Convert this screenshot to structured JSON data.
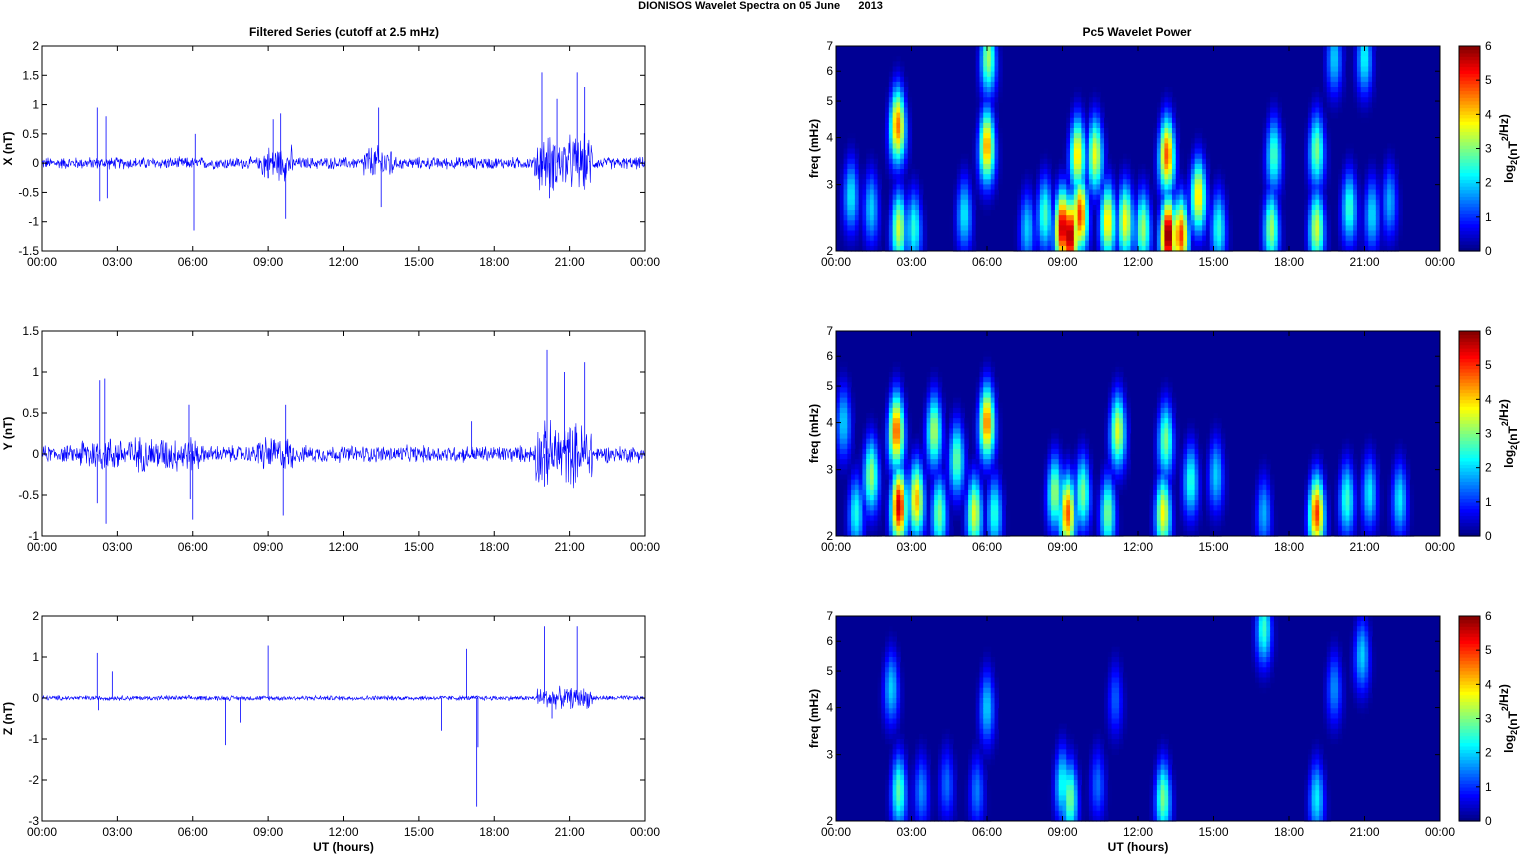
{
  "title": "DIONISOS Wavelet Spectra on 05 June      2013",
  "left_title": "Filtered Series (cutoff at 2.5 mHz)",
  "right_title": "Pc5 Wavelet Power",
  "time_ticks": [
    "00:00",
    "03:00",
    "06:00",
    "09:00",
    "12:00",
    "15:00",
    "18:00",
    "21:00",
    "00:00"
  ],
  "x_axis_label": "UT (hours)",
  "colors": {
    "series": "#0000ff",
    "background": "#ffffff",
    "axis": "#000000"
  },
  "chart_data": [
    {
      "type": "line",
      "panel": "X",
      "ylabel": "X (nT)",
      "xlabel": "",
      "ylim": [
        -1.5,
        2
      ],
      "yticks": [
        "-1.5",
        "-1",
        "-0.5",
        "0",
        "0.5",
        "1",
        "1.5",
        "2"
      ],
      "xlim_hours": [
        0,
        24
      ],
      "baseline_noise": 0.12,
      "spikes": [
        {
          "t": 2.2,
          "v": 0.95
        },
        {
          "t": 2.3,
          "v": -0.65
        },
        {
          "t": 2.55,
          "v": 0.8
        },
        {
          "t": 2.6,
          "v": -0.6
        },
        {
          "t": 6.05,
          "v": -1.15
        },
        {
          "t": 6.1,
          "v": 0.5
        },
        {
          "t": 9.5,
          "v": 0.85
        },
        {
          "t": 9.7,
          "v": -0.95
        },
        {
          "t": 9.2,
          "v": 0.75
        },
        {
          "t": 13.4,
          "v": 0.95
        },
        {
          "t": 13.5,
          "v": -0.75
        },
        {
          "t": 19.9,
          "v": 1.55
        },
        {
          "t": 21.3,
          "v": 1.55
        },
        {
          "t": 21.6,
          "v": 1.3
        },
        {
          "t": 20.5,
          "v": 1.1
        },
        {
          "t": 20.2,
          "v": -0.6
        }
      ],
      "active_intervals": [
        [
          8.7,
          10.0,
          0.35
        ],
        [
          12.8,
          14.0,
          0.35
        ],
        [
          19.6,
          21.9,
          0.55
        ]
      ]
    },
    {
      "type": "line",
      "panel": "Y",
      "ylabel": "Y (nT)",
      "xlabel": "",
      "ylim": [
        -1,
        1.5
      ],
      "yticks": [
        "-1",
        "-0.5",
        "0",
        "0.5",
        "1",
        "1.5"
      ],
      "xlim_hours": [
        0,
        24
      ],
      "baseline_noise": 0.12,
      "spikes": [
        {
          "t": 2.3,
          "v": 0.9
        },
        {
          "t": 2.5,
          "v": 0.92
        },
        {
          "t": 2.55,
          "v": -0.85
        },
        {
          "t": 2.2,
          "v": -0.6
        },
        {
          "t": 6.0,
          "v": -0.8
        },
        {
          "t": 5.85,
          "v": 0.6
        },
        {
          "t": 5.9,
          "v": -0.55
        },
        {
          "t": 9.6,
          "v": -0.75
        },
        {
          "t": 9.7,
          "v": 0.6
        },
        {
          "t": 17.1,
          "v": 0.4
        },
        {
          "t": 20.1,
          "v": 1.27
        },
        {
          "t": 21.6,
          "v": 1.12
        },
        {
          "t": 20.8,
          "v": 1.0
        },
        {
          "t": 20.0,
          "v": -0.4
        }
      ],
      "active_intervals": [
        [
          1.5,
          6.3,
          0.25
        ],
        [
          8.5,
          10.0,
          0.25
        ],
        [
          19.6,
          21.9,
          0.45
        ]
      ]
    },
    {
      "type": "line",
      "panel": "Z",
      "ylabel": "Z (nT)",
      "xlabel": "UT (hours)",
      "ylim": [
        -3,
        2
      ],
      "yticks": [
        "-3",
        "-2",
        "-1",
        "0",
        "1",
        "2"
      ],
      "xlim_hours": [
        0,
        24
      ],
      "baseline_noise": 0.07,
      "spikes": [
        {
          "t": 2.2,
          "v": 1.1
        },
        {
          "t": 2.25,
          "v": -0.3
        },
        {
          "t": 2.8,
          "v": 0.65
        },
        {
          "t": 7.3,
          "v": -1.15
        },
        {
          "t": 7.9,
          "v": -0.6
        },
        {
          "t": 9.0,
          "v": 1.28
        },
        {
          "t": 15.9,
          "v": -0.8
        },
        {
          "t": 16.9,
          "v": 1.2
        },
        {
          "t": 17.3,
          "v": -2.65
        },
        {
          "t": 17.35,
          "v": -1.2
        },
        {
          "t": 20.0,
          "v": 1.75
        },
        {
          "t": 21.3,
          "v": 1.75
        },
        {
          "t": 20.3,
          "v": -0.5
        }
      ],
      "active_intervals": [
        [
          19.7,
          21.9,
          0.3
        ]
      ]
    },
    {
      "type": "heatmap",
      "panel": "X",
      "title": "Pc5 Wavelet Power",
      "ylabel": "freq (mHz)",
      "xlabel": "",
      "y_scale": "log",
      "ylim": [
        2,
        7
      ],
      "yticks": [
        "2",
        "3",
        "4",
        "5",
        "6",
        "7"
      ],
      "xlim_hours": [
        0,
        24
      ],
      "clim": [
        0,
        6
      ],
      "colorbar_label": "log2(nT²/Hz)",
      "colorbar_ticks": [
        "0",
        "1",
        "2",
        "3",
        "4",
        "5",
        "6"
      ],
      "blobs": [
        {
          "t": 0.6,
          "f0": 2.8,
          "p": 2.2
        },
        {
          "t": 1.4,
          "f0": 2.6,
          "p": 2.0
        },
        {
          "t": 2.5,
          "f0": 2.3,
          "p": 3.5
        },
        {
          "t": 2.45,
          "f0": 4.3,
          "p": 4.6
        },
        {
          "t": 3.1,
          "f0": 2.3,
          "p": 2.5
        },
        {
          "t": 5.1,
          "f0": 2.5,
          "p": 2.2
        },
        {
          "t": 6.0,
          "f0": 3.8,
          "p": 4.4
        },
        {
          "t": 6.05,
          "f0": 6.5,
          "p": 3.2
        },
        {
          "t": 7.6,
          "f0": 2.3,
          "p": 2.0
        },
        {
          "t": 8.3,
          "f0": 2.5,
          "p": 2.7
        },
        {
          "t": 9.0,
          "f0": 2.3,
          "p": 5.8
        },
        {
          "t": 9.3,
          "f0": 2.2,
          "p": 6.0
        },
        {
          "t": 9.7,
          "f0": 2.5,
          "p": 5.0
        },
        {
          "t": 9.6,
          "f0": 3.6,
          "p": 4.0
        },
        {
          "t": 10.3,
          "f0": 3.6,
          "p": 3.7
        },
        {
          "t": 10.8,
          "f0": 2.4,
          "p": 4.0
        },
        {
          "t": 11.5,
          "f0": 2.4,
          "p": 3.8
        },
        {
          "t": 12.2,
          "f0": 2.3,
          "p": 3.2
        },
        {
          "t": 13.2,
          "f0": 2.2,
          "p": 6.2
        },
        {
          "t": 13.15,
          "f0": 3.6,
          "p": 4.8
        },
        {
          "t": 13.7,
          "f0": 2.2,
          "p": 5.0
        },
        {
          "t": 14.4,
          "f0": 2.8,
          "p": 4.0
        },
        {
          "t": 15.2,
          "f0": 2.3,
          "p": 2.5
        },
        {
          "t": 17.3,
          "f0": 2.3,
          "p": 3.2
        },
        {
          "t": 17.4,
          "f0": 3.6,
          "p": 2.7
        },
        {
          "t": 19.1,
          "f0": 2.3,
          "p": 3.5
        },
        {
          "t": 19.1,
          "f0": 3.7,
          "p": 3.0
        },
        {
          "t": 20.4,
          "f0": 2.6,
          "p": 2.6
        },
        {
          "t": 21.3,
          "f0": 2.5,
          "p": 2.1
        },
        {
          "t": 22.0,
          "f0": 2.7,
          "p": 1.8
        },
        {
          "t": 19.8,
          "f0": 6.5,
          "p": 2.0
        },
        {
          "t": 21.0,
          "f0": 6.5,
          "p": 2.3
        }
      ]
    },
    {
      "type": "heatmap",
      "panel": "Y",
      "ylabel": "freq (mHz)",
      "xlabel": "",
      "y_scale": "log",
      "ylim": [
        2,
        7
      ],
      "yticks": [
        "2",
        "3",
        "4",
        "5",
        "6",
        "7"
      ],
      "xlim_hours": [
        0,
        24
      ],
      "clim": [
        0,
        6
      ],
      "colorbar_label": "log2(nT²/Hz)",
      "colorbar_ticks": [
        "0",
        "1",
        "2",
        "3",
        "4",
        "5",
        "6"
      ],
      "blobs": [
        {
          "t": 0.3,
          "f0": 4.0,
          "p": 2.0
        },
        {
          "t": 1.4,
          "f0": 2.9,
          "p": 3.2
        },
        {
          "t": 0.8,
          "f0": 2.3,
          "p": 2.4
        },
        {
          "t": 2.5,
          "f0": 2.4,
          "p": 5.6
        },
        {
          "t": 2.4,
          "f0": 3.8,
          "p": 4.8
        },
        {
          "t": 3.2,
          "f0": 2.5,
          "p": 4.2
        },
        {
          "t": 3.9,
          "f0": 3.8,
          "p": 3.3
        },
        {
          "t": 4.1,
          "f0": 2.3,
          "p": 3.0
        },
        {
          "t": 4.8,
          "f0": 3.2,
          "p": 2.9
        },
        {
          "t": 5.5,
          "f0": 2.3,
          "p": 3.6
        },
        {
          "t": 6.0,
          "f0": 4.0,
          "p": 4.6
        },
        {
          "t": 6.3,
          "f0": 2.3,
          "p": 2.5
        },
        {
          "t": 8.7,
          "f0": 2.6,
          "p": 3.2
        },
        {
          "t": 9.2,
          "f0": 2.3,
          "p": 4.8
        },
        {
          "t": 9.8,
          "f0": 2.6,
          "p": 3.0
        },
        {
          "t": 10.8,
          "f0": 2.3,
          "p": 3.0
        },
        {
          "t": 11.2,
          "f0": 3.8,
          "p": 3.6
        },
        {
          "t": 13.0,
          "f0": 2.3,
          "p": 3.8
        },
        {
          "t": 13.1,
          "f0": 3.6,
          "p": 3.0
        },
        {
          "t": 14.1,
          "f0": 2.8,
          "p": 2.5
        },
        {
          "t": 15.1,
          "f0": 2.9,
          "p": 2.0
        },
        {
          "t": 17.0,
          "f0": 2.3,
          "p": 1.8
        },
        {
          "t": 19.1,
          "f0": 2.3,
          "p": 5.0
        },
        {
          "t": 20.3,
          "f0": 2.5,
          "p": 2.6
        },
        {
          "t": 21.2,
          "f0": 2.6,
          "p": 2.2
        },
        {
          "t": 22.4,
          "f0": 2.5,
          "p": 2.2
        }
      ]
    },
    {
      "type": "heatmap",
      "panel": "Z",
      "ylabel": "freq (mHz)",
      "xlabel": "UT (hours)",
      "y_scale": "log",
      "ylim": [
        2,
        7
      ],
      "yticks": [
        "2",
        "3",
        "4",
        "5",
        "6",
        "7"
      ],
      "xlim_hours": [
        0,
        24
      ],
      "clim": [
        0,
        6
      ],
      "colorbar_label": "log2(nT²/Hz)",
      "colorbar_ticks": [
        "0",
        "1",
        "2",
        "3",
        "4",
        "5",
        "6"
      ],
      "blobs": [
        {
          "t": 2.5,
          "f0": 2.4,
          "p": 2.8
        },
        {
          "t": 2.2,
          "f0": 4.5,
          "p": 2.0
        },
        {
          "t": 3.4,
          "f0": 2.4,
          "p": 1.6
        },
        {
          "t": 4.4,
          "f0": 2.5,
          "p": 1.4
        },
        {
          "t": 5.6,
          "f0": 2.4,
          "p": 1.5
        },
        {
          "t": 6.0,
          "f0": 4.0,
          "p": 2.0
        },
        {
          "t": 9.0,
          "f0": 2.5,
          "p": 2.4
        },
        {
          "t": 9.3,
          "f0": 2.3,
          "p": 3.0
        },
        {
          "t": 10.4,
          "f0": 2.5,
          "p": 1.4
        },
        {
          "t": 13.0,
          "f0": 2.3,
          "p": 3.0
        },
        {
          "t": 11.1,
          "f0": 4.2,
          "p": 1.3
        },
        {
          "t": 17.0,
          "f0": 6.5,
          "p": 2.6
        },
        {
          "t": 19.1,
          "f0": 2.3,
          "p": 2.2
        },
        {
          "t": 19.8,
          "f0": 4.5,
          "p": 1.6
        },
        {
          "t": 20.9,
          "f0": 5.5,
          "p": 2.0
        }
      ]
    }
  ]
}
